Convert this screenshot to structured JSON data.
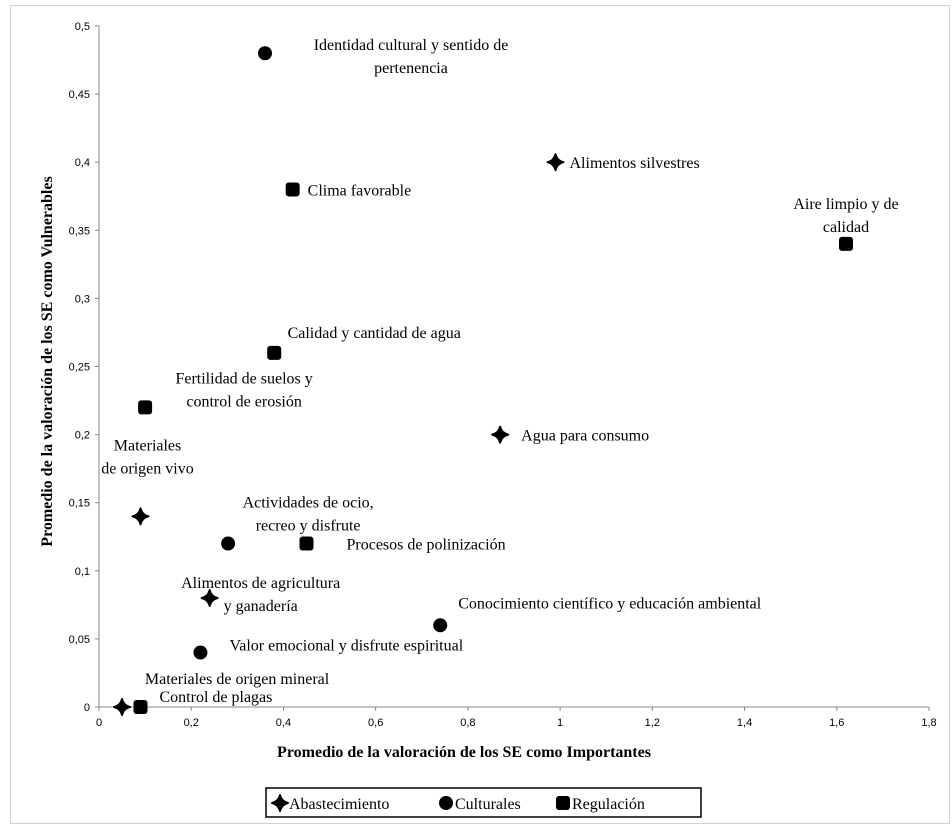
{
  "chart_data": {
    "type": "scatter",
    "xlabel": "Promedio de la valoración de los SE como Importantes",
    "ylabel": "Promedio de la valoración de los SE como Vulnerables",
    "xlim": [
      0,
      1.8
    ],
    "ylim": [
      0,
      0.5
    ],
    "x_ticks": [
      "0",
      "0,2",
      "0,4",
      "0,6",
      "0,8",
      "1",
      "1,2",
      "1,4",
      "1,6",
      "1,8"
    ],
    "y_ticks": [
      "0",
      "0,05",
      "0,1",
      "0,15",
      "0,2",
      "0,25",
      "0,3",
      "0,35",
      "0,4",
      "0,45",
      "0,5"
    ],
    "grid": false,
    "legend_position": "bottom",
    "series": [
      {
        "name": "Abastecimiento",
        "marker": "diamond",
        "color": "#000000",
        "points": [
          {
            "x": 0.99,
            "y": 0.4,
            "label": [
              "Alimentos silvestres"
            ]
          },
          {
            "x": 0.87,
            "y": 0.2,
            "label": [
              "Agua para consumo"
            ]
          },
          {
            "x": 0.09,
            "y": 0.14,
            "label": [
              "Materiales",
              "de origen vivo"
            ]
          },
          {
            "x": 0.24,
            "y": 0.08,
            "label": [
              "Alimentos de agricultura",
              "y ganadería"
            ]
          },
          {
            "x": 0.05,
            "y": 0.0,
            "label": [
              "Materiales de origen mineral"
            ]
          }
        ]
      },
      {
        "name": "Culturales",
        "marker": "circle",
        "color": "#000000",
        "points": [
          {
            "x": 0.36,
            "y": 0.48,
            "label": [
              "Identidad cultural y sentido de",
              "pertenencia"
            ]
          },
          {
            "x": 0.28,
            "y": 0.12,
            "label": [
              "Actividades de ocio,",
              "recreo y disfrute"
            ]
          },
          {
            "x": 0.74,
            "y": 0.06,
            "label": [
              "Conocimiento científico y educación ambiental"
            ]
          },
          {
            "x": 0.22,
            "y": 0.04,
            "label": [
              "Valor emocional y disfrute espiritual"
            ]
          }
        ]
      },
      {
        "name": "Regulación",
        "marker": "square",
        "color": "#000000",
        "points": [
          {
            "x": 0.42,
            "y": 0.38,
            "label": [
              "Clima favorable"
            ]
          },
          {
            "x": 1.62,
            "y": 0.34,
            "label": [
              "Aire limpio y de",
              "calidad"
            ]
          },
          {
            "x": 0.38,
            "y": 0.26,
            "label": [
              "Calidad y cantidad de agua"
            ]
          },
          {
            "x": 0.1,
            "y": 0.22,
            "label": [
              "Fertilidad de suelos y",
              "control de erosión"
            ]
          },
          {
            "x": 0.45,
            "y": 0.12,
            "label": [
              "Procesos de polinización"
            ]
          },
          {
            "x": 0.09,
            "y": 0.0,
            "label": [
              "Control de plagas"
            ]
          }
        ]
      }
    ]
  }
}
